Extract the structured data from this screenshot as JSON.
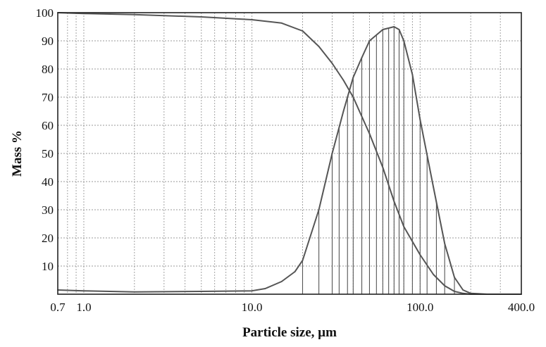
{
  "chart_data": {
    "type": "line",
    "xlabel": "Particle size, µm",
    "ylabel": "Mass %",
    "x_scale": "log",
    "xlim": [
      0.7,
      400.0
    ],
    "ylim": [
      0,
      100
    ],
    "x_tick_values": [
      0.7,
      1.0,
      10.0,
      100.0,
      400.0
    ],
    "x_tick_labels": [
      "0.7",
      "1.0",
      "10.0",
      "100.0",
      "400.0"
    ],
    "y_tick_values": [
      10,
      20,
      30,
      40,
      50,
      60,
      70,
      80,
      90,
      100
    ],
    "y_tick_labels": [
      "10",
      "20",
      "30",
      "40",
      "50",
      "60",
      "70",
      "80",
      "90",
      "100"
    ],
    "grid": true,
    "colors": {
      "line": "#555555",
      "grid": "#999999",
      "frame": "#222222",
      "text": "#111111"
    },
    "series": [
      {
        "kind": "cumulative-undersize",
        "x": [
          0.7,
          1.0,
          2.0,
          5.0,
          10.0,
          15.0,
          20.0,
          25.0,
          30.0,
          35.0,
          40.0,
          50.0,
          60.0,
          70.0,
          80.0,
          100.0,
          120.0,
          140.0,
          160.0,
          180.0,
          200.0,
          250.0,
          400.0
        ],
        "y": [
          100,
          99.7,
          99.3,
          98.5,
          97.5,
          96.3,
          93.5,
          88,
          82,
          76,
          70,
          57,
          45,
          33,
          24,
          14,
          7,
          3,
          1,
          0.3,
          0,
          0,
          0
        ]
      },
      {
        "kind": "frequency",
        "x": [
          0.7,
          1.0,
          2.0,
          5.0,
          10.0,
          12.0,
          15.0,
          18.0,
          20.0,
          25.0,
          30.0,
          35.0,
          40.0,
          45.0,
          50.0,
          60.0,
          70.0,
          75.0,
          80.0,
          90.0,
          100.0,
          120.0,
          140.0,
          160.0,
          180.0,
          200.0,
          250.0,
          400.0
        ],
        "y": [
          1.5,
          1.2,
          0.8,
          1.0,
          1.2,
          2.0,
          4.5,
          8,
          12,
          30,
          50,
          65,
          77,
          84,
          90,
          94,
          95,
          94,
          90,
          78,
          62,
          38,
          18,
          6,
          1.5,
          0.3,
          0,
          0
        ]
      }
    ],
    "dropline_x": [
      20,
      25,
      30,
      33,
      37,
      40,
      45,
      50,
      55,
      60,
      65,
      70,
      75,
      80,
      90,
      100,
      110,
      125,
      140,
      160
    ]
  }
}
